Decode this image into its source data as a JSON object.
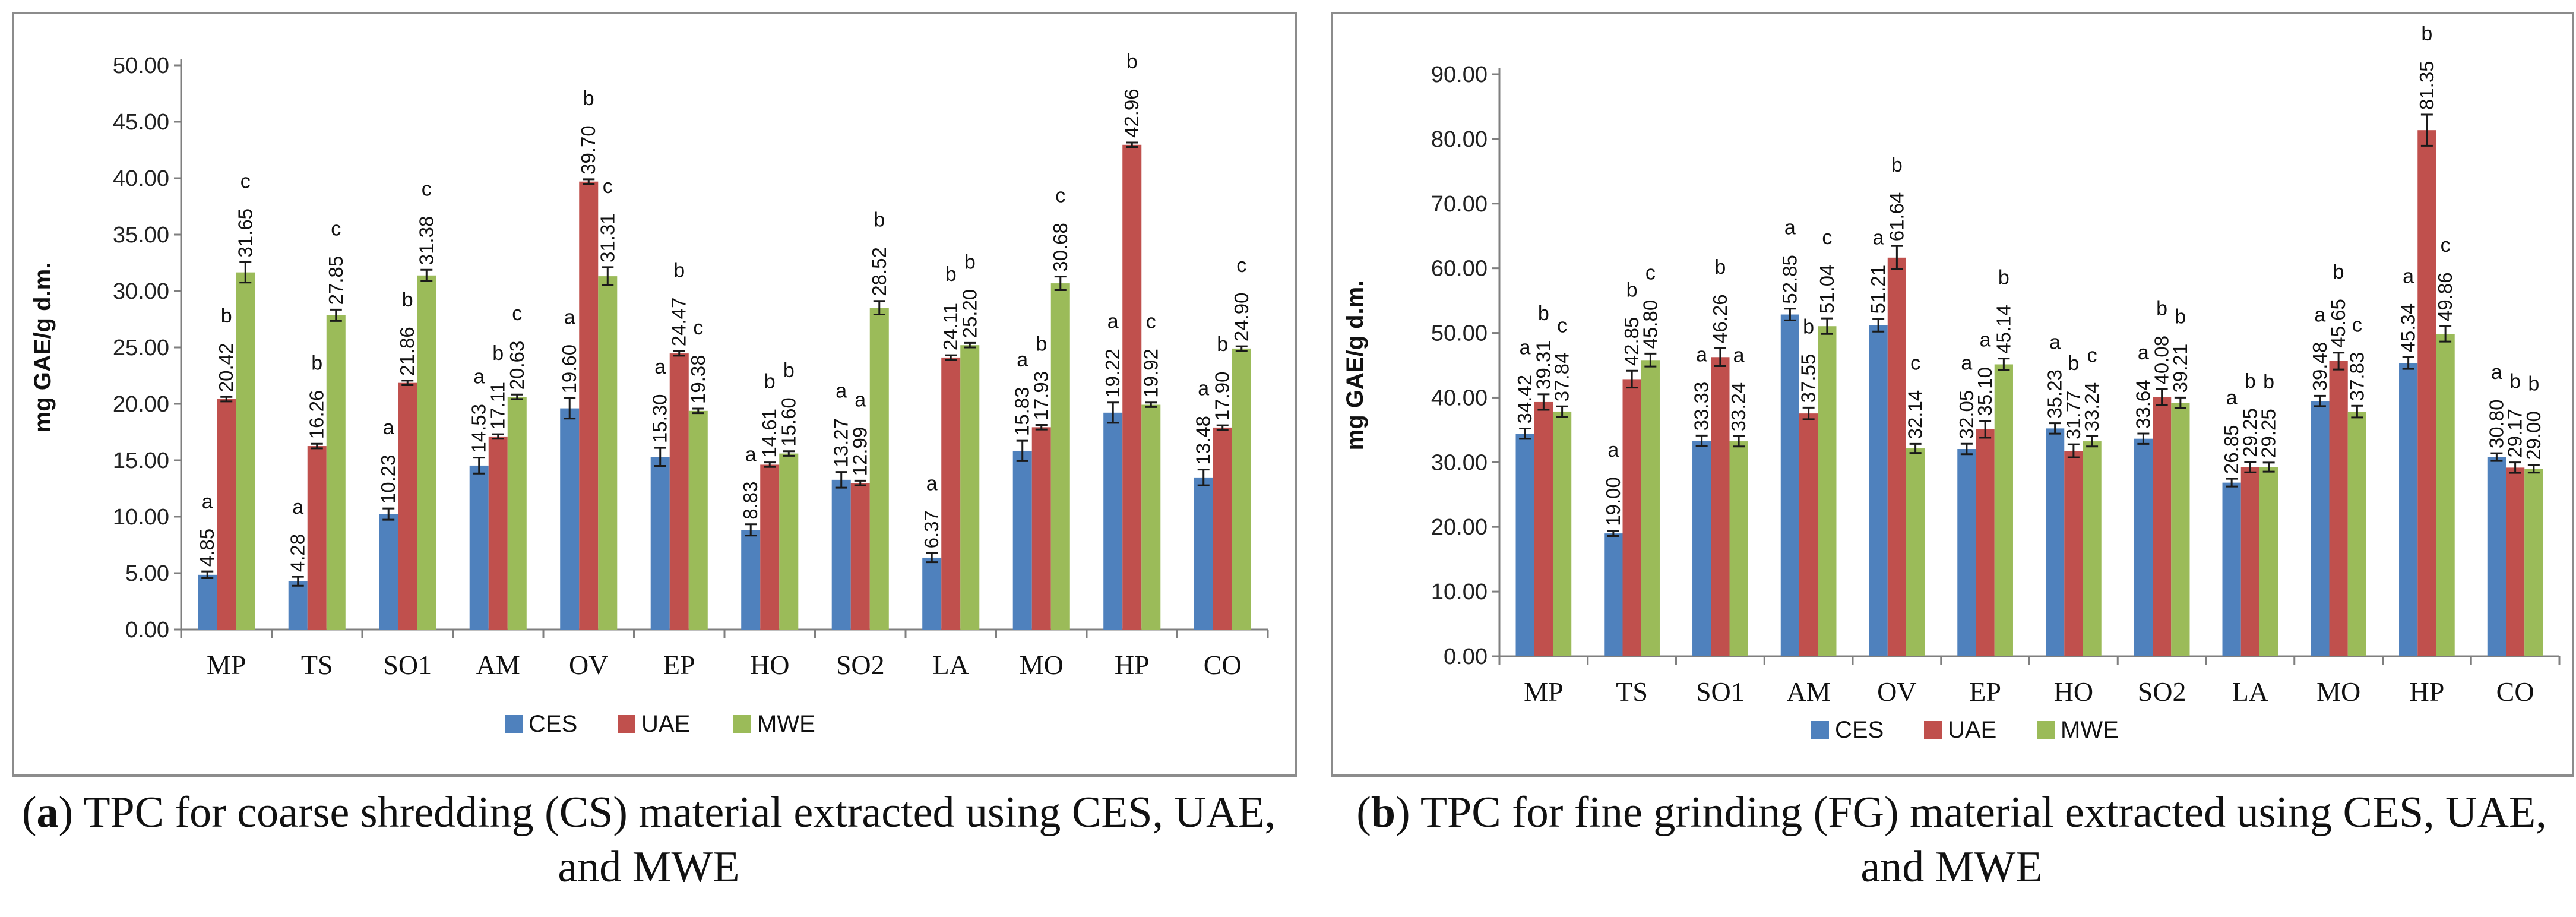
{
  "colors": {
    "CES": "#4f81bd",
    "UAE": "#c0504d",
    "MWE": "#9bbb59"
  },
  "chart_data": [
    {
      "type": "bar",
      "panel_letter": "a",
      "caption": "TPC for coarse shredding (CS) material extracted using CES, UAE, and MWE",
      "ylabel": "mg GAE/g d.m.",
      "xlabel": "",
      "ylim": [
        0,
        50
      ],
      "yticks": [
        "0.00",
        "5.00",
        "10.00",
        "15.00",
        "20.00",
        "25.00",
        "30.00",
        "35.00",
        "40.00",
        "45.00",
        "50.00"
      ],
      "grid": false,
      "legend_position": "bottom",
      "categories": [
        "MP",
        "TS",
        "SO1",
        "AM",
        "OV",
        "EP",
        "HO",
        "SO2",
        "LA",
        "MO",
        "HP",
        "CO"
      ],
      "series": [
        {
          "name": "CES",
          "values": [
            4.85,
            4.28,
            10.23,
            14.53,
            19.6,
            15.3,
            8.83,
            13.27,
            6.37,
            15.83,
            19.22,
            13.48
          ],
          "labels": [
            "4.85",
            "4.28",
            "10.23",
            "14.53",
            "19.60",
            "15.30",
            "8.83",
            "13.27",
            "6.37",
            "15.83",
            "19.22",
            "13.48"
          ],
          "letters": [
            "a",
            "a",
            "a",
            "a",
            "a",
            "a",
            "a",
            "a",
            "a",
            "a",
            "a",
            "a"
          ],
          "errors": [
            0.3,
            0.4,
            0.5,
            0.7,
            0.9,
            0.8,
            0.5,
            0.7,
            0.4,
            0.9,
            0.9,
            0.7
          ]
        },
        {
          "name": "UAE",
          "values": [
            20.42,
            16.26,
            21.86,
            17.11,
            39.7,
            24.47,
            14.61,
            12.99,
            24.11,
            17.93,
            42.96,
            17.9
          ],
          "labels": [
            "20.42",
            "16.26",
            "21.86",
            "17.11",
            "39.70",
            "24.47",
            "14.61",
            "12.99",
            "24.11",
            "17.93",
            "42.96",
            "17.90"
          ],
          "letters": [
            "b",
            "b",
            "b",
            "b",
            "b",
            "b",
            "b",
            "a",
            "b",
            "b",
            "b",
            "b"
          ],
          "errors": [
            0.2,
            0.2,
            0.2,
            0.2,
            0.2,
            0.2,
            0.2,
            0.2,
            0.2,
            0.2,
            0.2,
            0.2
          ]
        },
        {
          "name": "MWE",
          "values": [
            31.65,
            27.85,
            31.38,
            20.63,
            31.31,
            19.38,
            15.6,
            28.52,
            25.2,
            30.68,
            19.92,
            24.9
          ],
          "labels": [
            "31.65",
            "27.85",
            "31.38",
            "20.63",
            "31.31",
            "19.38",
            "15.60",
            "28.52",
            "25.20",
            "30.68",
            "19.92",
            "24.90"
          ],
          "letters": [
            "c",
            "c",
            "c",
            "c",
            "c",
            "c",
            "b",
            "b",
            "b",
            "c",
            "c",
            "c"
          ],
          "errors": [
            0.9,
            0.5,
            0.5,
            0.2,
            0.8,
            0.2,
            0.2,
            0.6,
            0.2,
            0.6,
            0.2,
            0.2
          ]
        }
      ]
    },
    {
      "type": "bar",
      "panel_letter": "b",
      "caption": "TPC for fine grinding (FG) material extracted using CES, UAE, and MWE",
      "ylabel": "mg GAE/g d.m.",
      "xlabel": "",
      "ylim": [
        0,
        90
      ],
      "yticks": [
        "0.00",
        "10.00",
        "20.00",
        "30.00",
        "40.00",
        "50.00",
        "60.00",
        "70.00",
        "80.00",
        "90.00"
      ],
      "grid": false,
      "legend_position": "bottom",
      "categories": [
        "MP",
        "TS",
        "SO1",
        "AM",
        "OV",
        "EP",
        "HO",
        "SO2",
        "LA",
        "MO",
        "HP",
        "CO"
      ],
      "series": [
        {
          "name": "CES",
          "values": [
            34.42,
            19.0,
            33.33,
            52.85,
            51.21,
            32.05,
            35.23,
            33.64,
            26.85,
            39.48,
            45.34,
            30.8
          ],
          "labels": [
            "34.42",
            "19.00",
            "33.33",
            "52.85",
            "51.21",
            "32.05",
            "35.23",
            "33.64",
            "26.85",
            "39.48",
            "45.34",
            "30.80"
          ],
          "letters": [
            "a",
            "a",
            "a",
            "a",
            "a",
            "a",
            "a",
            "a",
            "a",
            "a",
            "a",
            "a"
          ],
          "errors": [
            0.8,
            0.4,
            0.8,
            0.9,
            1.0,
            0.8,
            0.8,
            0.8,
            0.6,
            0.8,
            0.9,
            0.6
          ]
        },
        {
          "name": "UAE",
          "values": [
            39.31,
            42.85,
            46.26,
            37.55,
            61.64,
            35.1,
            31.77,
            40.08,
            29.25,
            45.65,
            81.35,
            29.17
          ],
          "labels": [
            "39.31",
            "42.85",
            "46.26",
            "37.55",
            "61.64",
            "35.10",
            "31.77",
            "40.08",
            "29.25",
            "45.65",
            "81.35",
            "29.17"
          ],
          "letters": [
            "b",
            "b",
            "b",
            "b",
            "b",
            "a",
            "b",
            "b",
            "b",
            "b",
            "b",
            "b"
          ],
          "errors": [
            1.2,
            1.3,
            1.4,
            0.9,
            1.8,
            1.3,
            1.0,
            1.2,
            0.8,
            1.3,
            2.4,
            0.8
          ]
        },
        {
          "name": "MWE",
          "values": [
            37.84,
            45.8,
            33.24,
            51.04,
            32.14,
            45.14,
            33.24,
            39.21,
            29.25,
            37.83,
            49.86,
            29.0
          ],
          "labels": [
            "37.84",
            "45.80",
            "33.24",
            "51.04",
            "32.14",
            "45.14",
            "33.24",
            "39.21",
            "29.25",
            "37.83",
            "49.86",
            "29.00"
          ],
          "letters": [
            "c",
            "c",
            "a",
            "c",
            "c",
            "b",
            "c",
            "b",
            "b",
            "c",
            "c",
            "b"
          ],
          "errors": [
            0.8,
            1.0,
            0.8,
            1.2,
            0.7,
            0.9,
            0.8,
            0.8,
            0.7,
            0.9,
            1.2,
            0.6
          ]
        }
      ]
    }
  ]
}
